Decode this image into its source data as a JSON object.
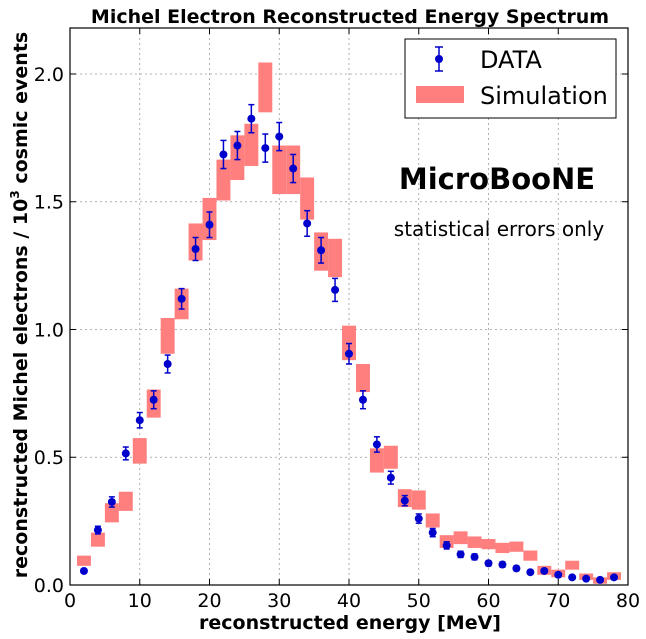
{
  "chart_data": {
    "type": "scatter",
    "title": "Michel Electron Reconstructed Energy Spectrum",
    "xlabel": "reconstructed energy [MeV]",
    "ylabel_prefix": "reconstructed Michel electrons / ",
    "ylabel_power_base": "10",
    "ylabel_power_exp": "3",
    "ylabel_suffix": "  cosmic events",
    "xlim": [
      0,
      80
    ],
    "ylim": [
      0,
      2.18
    ],
    "grid": true,
    "legend_position": "top-right",
    "xticks": [
      {
        "value": 0,
        "label": "0"
      },
      {
        "value": 10,
        "label": "10"
      },
      {
        "value": 20,
        "label": "20"
      },
      {
        "value": 30,
        "label": "30"
      },
      {
        "value": 40,
        "label": "40"
      },
      {
        "value": 50,
        "label": "50"
      },
      {
        "value": 60,
        "label": "60"
      },
      {
        "value": 70,
        "label": "70"
      },
      {
        "value": 80,
        "label": "80"
      }
    ],
    "yticks": [
      {
        "value": 0,
        "label": "0.0"
      },
      {
        "value": 0.5,
        "label": "0.5"
      },
      {
        "value": 1.0,
        "label": "1.0"
      },
      {
        "value": 1.5,
        "label": "1.5"
      },
      {
        "value": 2.0,
        "label": "2.0"
      }
    ],
    "annotations": {
      "experiment": "MicroBooNE",
      "note": "statistical errors only"
    },
    "series": [
      {
        "name": "DATA",
        "kind": "errorbar",
        "color": "#0000cc",
        "points": [
          {
            "x": 2,
            "y": 0.055,
            "err": 0.008
          },
          {
            "x": 4,
            "y": 0.215,
            "err": 0.015
          },
          {
            "x": 6,
            "y": 0.325,
            "err": 0.02
          },
          {
            "x": 8,
            "y": 0.515,
            "err": 0.025
          },
          {
            "x": 10,
            "y": 0.645,
            "err": 0.03
          },
          {
            "x": 12,
            "y": 0.725,
            "err": 0.035
          },
          {
            "x": 14,
            "y": 0.865,
            "err": 0.035
          },
          {
            "x": 16,
            "y": 1.12,
            "err": 0.04
          },
          {
            "x": 18,
            "y": 1.315,
            "err": 0.045
          },
          {
            "x": 20,
            "y": 1.41,
            "err": 0.05
          },
          {
            "x": 22,
            "y": 1.685,
            "err": 0.055
          },
          {
            "x": 24,
            "y": 1.72,
            "err": 0.055
          },
          {
            "x": 26,
            "y": 1.825,
            "err": 0.055
          },
          {
            "x": 28,
            "y": 1.71,
            "err": 0.055
          },
          {
            "x": 30,
            "y": 1.755,
            "err": 0.055
          },
          {
            "x": 32,
            "y": 1.63,
            "err": 0.055
          },
          {
            "x": 34,
            "y": 1.415,
            "err": 0.05
          },
          {
            "x": 36,
            "y": 1.31,
            "err": 0.05
          },
          {
            "x": 38,
            "y": 1.155,
            "err": 0.045
          },
          {
            "x": 40,
            "y": 0.905,
            "err": 0.04
          },
          {
            "x": 42,
            "y": 0.725,
            "err": 0.035
          },
          {
            "x": 44,
            "y": 0.55,
            "err": 0.03
          },
          {
            "x": 46,
            "y": 0.42,
            "err": 0.025
          },
          {
            "x": 48,
            "y": 0.33,
            "err": 0.02
          },
          {
            "x": 50,
            "y": 0.26,
            "err": 0.018
          },
          {
            "x": 52,
            "y": 0.205,
            "err": 0.016
          },
          {
            "x": 54,
            "y": 0.155,
            "err": 0.014
          },
          {
            "x": 56,
            "y": 0.12,
            "err": 0.012
          },
          {
            "x": 58,
            "y": 0.11,
            "err": 0.011
          },
          {
            "x": 60,
            "y": 0.085,
            "err": 0.01
          },
          {
            "x": 62,
            "y": 0.08,
            "err": 0.01
          },
          {
            "x": 64,
            "y": 0.065,
            "err": 0.009
          },
          {
            "x": 66,
            "y": 0.05,
            "err": 0.008
          },
          {
            "x": 68,
            "y": 0.055,
            "err": 0.008
          },
          {
            "x": 70,
            "y": 0.04,
            "err": 0.007
          },
          {
            "x": 72,
            "y": 0.03,
            "err": 0.006
          },
          {
            "x": 74,
            "y": 0.025,
            "err": 0.006
          },
          {
            "x": 76,
            "y": 0.02,
            "err": 0.005
          },
          {
            "x": 78,
            "y": 0.03,
            "err": 0.006
          }
        ]
      },
      {
        "name": "Simulation",
        "kind": "band",
        "color": "#ff7f7f",
        "bins": [
          {
            "x0": 1,
            "x1": 3,
            "lo": 0.075,
            "hi": 0.115
          },
          {
            "x0": 3,
            "x1": 5,
            "lo": 0.15,
            "hi": 0.205
          },
          {
            "x0": 5,
            "x1": 7,
            "lo": 0.245,
            "hi": 0.32
          },
          {
            "x0": 7,
            "x1": 9,
            "lo": 0.29,
            "hi": 0.365
          },
          {
            "x0": 9,
            "x1": 11,
            "lo": 0.475,
            "hi": 0.575
          },
          {
            "x0": 11,
            "x1": 13,
            "lo": 0.655,
            "hi": 0.765
          },
          {
            "x0": 13,
            "x1": 15,
            "lo": 0.905,
            "hi": 1.045
          },
          {
            "x0": 15,
            "x1": 17,
            "lo": 1.04,
            "hi": 1.16
          },
          {
            "x0": 17,
            "x1": 19,
            "lo": 1.27,
            "hi": 1.415
          },
          {
            "x0": 19,
            "x1": 21,
            "lo": 1.35,
            "hi": 1.515
          },
          {
            "x0": 21,
            "x1": 23,
            "lo": 1.505,
            "hi": 1.665
          },
          {
            "x0": 23,
            "x1": 25,
            "lo": 1.585,
            "hi": 1.76
          },
          {
            "x0": 25,
            "x1": 27,
            "lo": 1.64,
            "hi": 1.805
          },
          {
            "x0": 27,
            "x1": 29,
            "lo": 1.85,
            "hi": 2.045
          },
          {
            "x0": 29,
            "x1": 31,
            "lo": 1.53,
            "hi": 1.72
          },
          {
            "x0": 31,
            "x1": 33,
            "lo": 1.53,
            "hi": 1.72
          },
          {
            "x0": 33,
            "x1": 35,
            "lo": 1.43,
            "hi": 1.595
          },
          {
            "x0": 35,
            "x1": 37,
            "lo": 1.23,
            "hi": 1.38
          },
          {
            "x0": 37,
            "x1": 39,
            "lo": 1.205,
            "hi": 1.355
          },
          {
            "x0": 39,
            "x1": 41,
            "lo": 0.88,
            "hi": 1.015
          },
          {
            "x0": 41,
            "x1": 43,
            "lo": 0.755,
            "hi": 0.865
          },
          {
            "x0": 43,
            "x1": 45,
            "lo": 0.44,
            "hi": 0.535
          },
          {
            "x0": 45,
            "x1": 47,
            "lo": 0.455,
            "hi": 0.545
          },
          {
            "x0": 47,
            "x1": 49,
            "lo": 0.305,
            "hi": 0.375
          },
          {
            "x0": 49,
            "x1": 51,
            "lo": 0.295,
            "hi": 0.37
          },
          {
            "x0": 51,
            "x1": 53,
            "lo": 0.225,
            "hi": 0.28
          },
          {
            "x0": 53,
            "x1": 55,
            "lo": 0.145,
            "hi": 0.195
          },
          {
            "x0": 55,
            "x1": 57,
            "lo": 0.16,
            "hi": 0.21
          },
          {
            "x0": 57,
            "x1": 59,
            "lo": 0.145,
            "hi": 0.19
          },
          {
            "x0": 59,
            "x1": 61,
            "lo": 0.14,
            "hi": 0.18
          },
          {
            "x0": 61,
            "x1": 63,
            "lo": 0.125,
            "hi": 0.165
          },
          {
            "x0": 63,
            "x1": 65,
            "lo": 0.13,
            "hi": 0.17
          },
          {
            "x0": 65,
            "x1": 67,
            "lo": 0.095,
            "hi": 0.135
          },
          {
            "x0": 67,
            "x1": 69,
            "lo": 0.04,
            "hi": 0.075
          },
          {
            "x0": 69,
            "x1": 71,
            "lo": 0.03,
            "hi": 0.06
          },
          {
            "x0": 71,
            "x1": 73,
            "lo": 0.06,
            "hi": 0.095
          },
          {
            "x0": 73,
            "x1": 75,
            "lo": 0.02,
            "hi": 0.045
          },
          {
            "x0": 75,
            "x1": 77,
            "lo": 0.005,
            "hi": 0.03
          },
          {
            "x0": 77,
            "x1": 79,
            "lo": 0.02,
            "hi": 0.05
          }
        ]
      }
    ]
  }
}
